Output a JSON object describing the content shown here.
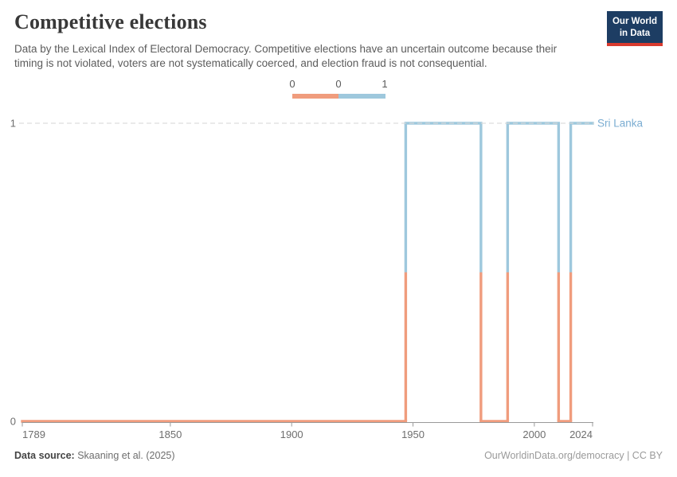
{
  "header": {
    "title": "Competitive elections",
    "subtitle": "Data by the Lexical Index of Electoral Democracy. Competitive elections have an uncertain outcome because their timing is not violated, voters are not systematically coerced, and election fraud is not consequential.",
    "logo": {
      "line1": "Our World",
      "line2": "in Data"
    }
  },
  "legend": {
    "labels": [
      "0",
      "0",
      "1"
    ],
    "colors": {
      "zero": "#f09c7d",
      "one": "#9ec8dd"
    }
  },
  "chart_data": {
    "type": "line",
    "title": "Competitive elections",
    "entity": "Sri Lanka",
    "xlabel": "",
    "ylabel": "",
    "x": {
      "min": 1789,
      "max": 2024,
      "ticks": [
        1789,
        1850,
        1900,
        1950,
        2000,
        2024
      ]
    },
    "y": {
      "min": 0,
      "max": 1,
      "ticks": [
        0,
        1
      ]
    },
    "grid": "dashed line at y=1 only",
    "series": [
      {
        "name": "Sri Lanka",
        "segments": [
          {
            "from": 1789,
            "to": 1947,
            "value": 0
          },
          {
            "from": 1947,
            "to": 1978,
            "value": 1
          },
          {
            "from": 1978,
            "to": 1989,
            "value": 0
          },
          {
            "from": 1989,
            "to": 2010,
            "value": 1
          },
          {
            "from": 2010,
            "to": 2015,
            "value": 0
          },
          {
            "from": 2015,
            "to": 2024,
            "value": 1
          }
        ]
      }
    ],
    "colors": {
      "value0": "#f09c7d",
      "value1": "#9ec8dd",
      "entity_label": "#7badd2",
      "axis": "#9a9a9a",
      "tick_text": "#6e6e6e",
      "gridline": "#d9d9d9"
    }
  },
  "footer": {
    "source_label": "Data source:",
    "source_value": " Skaaning et al. (2025)",
    "license": "OurWorldinData.org/democracy | CC BY"
  }
}
